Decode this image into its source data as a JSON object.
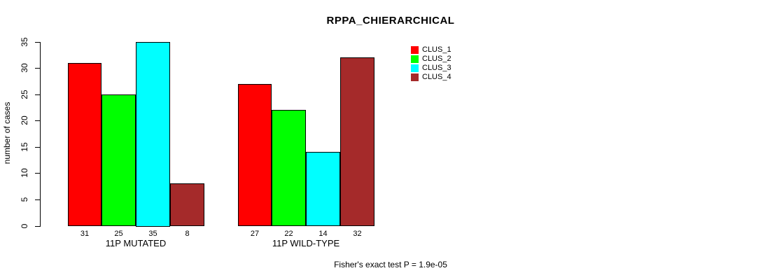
{
  "chart_data": {
    "type": "bar",
    "title": "RPPA_CHIERARCHICAL",
    "xlabel": "",
    "ylabel": "number of cases",
    "ylim": [
      0,
      35
    ],
    "yticks": [
      0,
      5,
      10,
      15,
      20,
      25,
      30,
      35
    ],
    "grid": false,
    "legend_position": "top-right",
    "categories": [
      "11P MUTATED",
      "11P WILD-TYPE"
    ],
    "series": [
      {
        "name": "CLUS_1",
        "color": "#ff0000",
        "values": [
          31,
          27
        ]
      },
      {
        "name": "CLUS_2",
        "color": "#00ff00",
        "values": [
          25,
          22
        ]
      },
      {
        "name": "CLUS_3",
        "color": "#00ffff",
        "values": [
          35,
          14
        ]
      },
      {
        "name": "CLUS_4",
        "color": "#a52a2a",
        "values": [
          8,
          32
        ]
      }
    ],
    "bar_value_labels": [
      [
        31,
        25,
        35,
        8
      ],
      [
        27,
        22,
        14,
        32
      ]
    ],
    "annotation": "Fisher's exact test P = 1.9e-05"
  }
}
